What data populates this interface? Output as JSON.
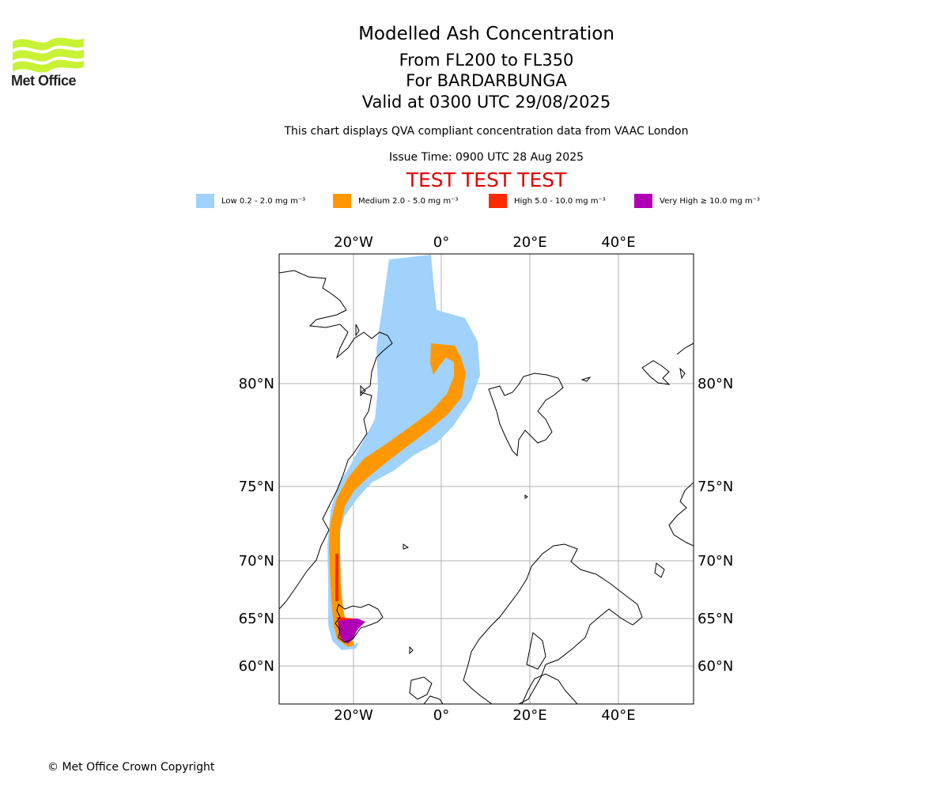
{
  "header": {
    "logo_text": "Met Office",
    "title": "Modelled Ash Concentration",
    "subtitle_levels": "From FL200 to FL350",
    "subtitle_volcano": "For BARDARBUNGA",
    "subtitle_valid": "Valid at 0300 UTC 29/08/2025",
    "note": "This chart displays QVA compliant concentration data from VAAC London",
    "issue_time": "Issue Time: 0900 UTC 28 Aug 2025",
    "test_banner": "TEST TEST TEST"
  },
  "legend": [
    {
      "label": "Low 0.2 - 2.0 mg m⁻³",
      "color": "#a0d2fb"
    },
    {
      "label": "Medium 2.0 - 5.0 mg m⁻³",
      "color": "#ff9800"
    },
    {
      "label": "High 5.0 - 10.0 mg m⁻³",
      "color": "#ff2a00"
    },
    {
      "label": "Very High ≥ 10.0 mg m⁻³",
      "color": "#b000b5"
    }
  ],
  "map": {
    "top_lon_labels": [
      "20°W",
      "0°",
      "20°E",
      "40°E"
    ],
    "bottom_lon_labels": [
      "20°W",
      "0°",
      "20°E",
      "40°E"
    ],
    "left_lat_labels": [
      "80°N",
      "75°N",
      "70°N",
      "65°N",
      "60°N"
    ],
    "right_lat_labels": [
      "80°N",
      "75°N",
      "70°N",
      "65°N",
      "60°N"
    ]
  },
  "footer": {
    "copyright": "© Met Office Crown Copyright"
  }
}
